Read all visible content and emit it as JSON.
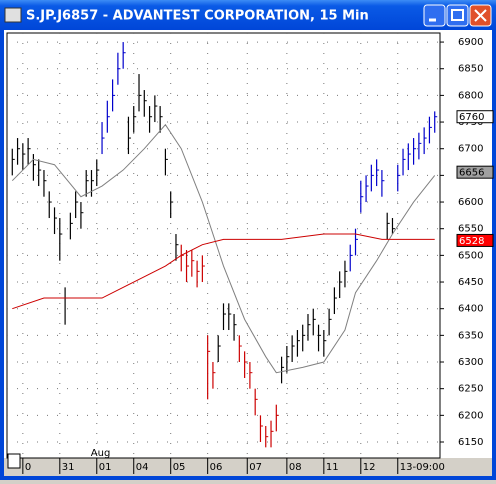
{
  "window_title": "S.JP.J6857 - ADVANTEST CORPORATION, 15 Min",
  "chart_data": {
    "type": "ohlc",
    "xlim": [
      -1,
      81
    ],
    "ylim": [
      6120,
      6917
    ],
    "yticks": [
      6150,
      6200,
      6250,
      6300,
      6350,
      6400,
      6450,
      6500,
      6550,
      6600,
      6650,
      6700,
      6750,
      6800,
      6850,
      6900
    ],
    "xticks": [
      {
        "value": 2,
        "label": "0"
      },
      {
        "value": 9,
        "label": "31"
      },
      {
        "value": 16,
        "label": "01"
      },
      {
        "value": 23,
        "label": "04"
      },
      {
        "value": 30,
        "label": "05"
      },
      {
        "value": 37,
        "label": "06"
      },
      {
        "value": 44.5,
        "label": "07"
      },
      {
        "value": 52,
        "label": "08"
      },
      {
        "value": 59,
        "label": "11"
      },
      {
        "value": 66,
        "label": "12"
      },
      {
        "value": 73,
        "label": "13-09:00"
      }
    ],
    "x_annotation": "Aug",
    "grid": true,
    "high": [
      6700,
      6720,
      6710,
      6720,
      6690,
      6680,
      6660,
      6620,
      6590,
      6570,
      6440,
      6580,
      6620,
      6600,
      6660,
      6660,
      6680,
      6750,
      6790,
      6830,
      6880,
      6900,
      6760,
      6780,
      6840,
      6810,
      6780,
      6800,
      6780,
      6700,
      6620,
      6540,
      6520,
      6510,
      6510,
      6490,
      6500,
      6350,
      6300,
      6350,
      6410,
      6410,
      6390,
      6350,
      6320,
      6300,
      6250,
      6200,
      6180,
      6190,
      6220,
      6310,
      6330,
      6350,
      6360,
      6370,
      6390,
      6400,
      6370,
      6360,
      6400,
      6440,
      6470,
      6490,
      6520,
      6550,
      6640,
      6650,
      6670,
      6680,
      6660,
      6580,
      6570,
      6670,
      6700,
      6710,
      6720,
      6730,
      6740,
      6760,
      6770
    ],
    "low": [
      6650,
      6670,
      6660,
      6670,
      6640,
      6630,
      6610,
      6570,
      6540,
      6490,
      6370,
      6530,
      6570,
      6550,
      6610,
      6610,
      6630,
      6690,
      6730,
      6770,
      6820,
      6850,
      6690,
      6730,
      6770,
      6760,
      6730,
      6750,
      6730,
      6650,
      6570,
      6490,
      6470,
      6450,
      6460,
      6440,
      6450,
      6230,
      6250,
      6300,
      6360,
      6360,
      6340,
      6300,
      6270,
      6250,
      6200,
      6150,
      6140,
      6140,
      6170,
      6260,
      6280,
      6300,
      6310,
      6320,
      6340,
      6350,
      6320,
      6310,
      6350,
      6390,
      6420,
      6440,
      6470,
      6500,
      6580,
      6600,
      6620,
      6630,
      6610,
      6530,
      6540,
      6620,
      6650,
      6660,
      6670,
      6680,
      6690,
      6710,
      6730
    ],
    "close": [
      6680,
      6700,
      6690,
      6700,
      6670,
      6660,
      6640,
      6600,
      6570,
      6540,
      6420,
      6560,
      6600,
      6580,
      6640,
      6640,
      6660,
      6720,
      6760,
      6800,
      6850,
      6880,
      6720,
      6760,
      6800,
      6790,
      6760,
      6780,
      6760,
      6680,
      6600,
      6520,
      6500,
      6480,
      6490,
      6470,
      6480,
      6320,
      6280,
      6330,
      6390,
      6390,
      6370,
      6330,
      6300,
      6280,
      6230,
      6180,
      6160,
      6170,
      6200,
      6290,
      6310,
      6330,
      6340,
      6350,
      6370,
      6380,
      6350,
      6340,
      6380,
      6420,
      6450,
      6470,
      6500,
      6530,
      6610,
      6630,
      6650,
      6660,
      6640,
      6560,
      6550,
      6650,
      6680,
      6690,
      6700,
      6710,
      6720,
      6740,
      6760
    ],
    "colors": [
      "#000000",
      "#000000",
      "#000000",
      "#000000",
      "#000000",
      "#000000",
      "#000000",
      "#000000",
      "#000000",
      "#000000",
      "#000000",
      "#000000",
      "#000000",
      "#000000",
      "#000000",
      "#000000",
      "#000000",
      "#0000cc",
      "#0000cc",
      "#0000cc",
      "#0000cc",
      "#0000cc",
      "#000000",
      "#000000",
      "#000000",
      "#000000",
      "#000000",
      "#000000",
      "#000000",
      "#000000",
      "#000000",
      "#000000",
      "#cc0000",
      "#cc0000",
      "#cc0000",
      "#cc0000",
      "#cc0000",
      "#cc0000",
      "#cc0000",
      "#000000",
      "#000000",
      "#000000",
      "#000000",
      "#cc0000",
      "#cc0000",
      "#cc0000",
      "#cc0000",
      "#cc0000",
      "#cc0000",
      "#cc0000",
      "#cc0000",
      "#000000",
      "#000000",
      "#000000",
      "#000000",
      "#000000",
      "#000000",
      "#000000",
      "#000000",
      "#000000",
      "#000000",
      "#000000",
      "#000000",
      "#000000",
      "#0000cc",
      "#0000cc",
      "#0000cc",
      "#0000cc",
      "#0000cc",
      "#0000cc",
      "#0000cc",
      "#000000",
      "#000000",
      "#0000cc",
      "#0000cc",
      "#0000cc",
      "#0000cc",
      "#0000cc",
      "#0000cc",
      "#0000cc",
      "#0000cc"
    ],
    "lines": [
      {
        "color": "#808080",
        "x": [
          0,
          4,
          8,
          13,
          17,
          21,
          25,
          29,
          32,
          36,
          40,
          44,
          48,
          50,
          55,
          59,
          63,
          65,
          69,
          72,
          76,
          80
        ],
        "values": [
          6640,
          6680,
          6670,
          6610,
          6630,
          6660,
          6700,
          6745,
          6700,
          6600,
          6480,
          6380,
          6310,
          6280,
          6290,
          6300,
          6360,
          6430,
          6490,
          6540,
          6600,
          6650
        ]
      },
      {
        "color": "#cc0000",
        "x": [
          0,
          6,
          12,
          17,
          23,
          29,
          32,
          36,
          40,
          46,
          51,
          59,
          65,
          70,
          80
        ],
        "values": [
          6400,
          6420,
          6420,
          6420,
          6450,
          6480,
          6500,
          6520,
          6530,
          6530,
          6530,
          6540,
          6540,
          6530,
          6530
        ]
      }
    ],
    "price_labels": [
      {
        "value": 6760,
        "background": "#ffffff",
        "text_color": "#000000"
      },
      {
        "value": 6656,
        "background": "#a0a0a0",
        "text_color": "#000000"
      },
      {
        "value": 6528,
        "background": "#ff0000",
        "text_color": "#ffffff"
      }
    ]
  }
}
